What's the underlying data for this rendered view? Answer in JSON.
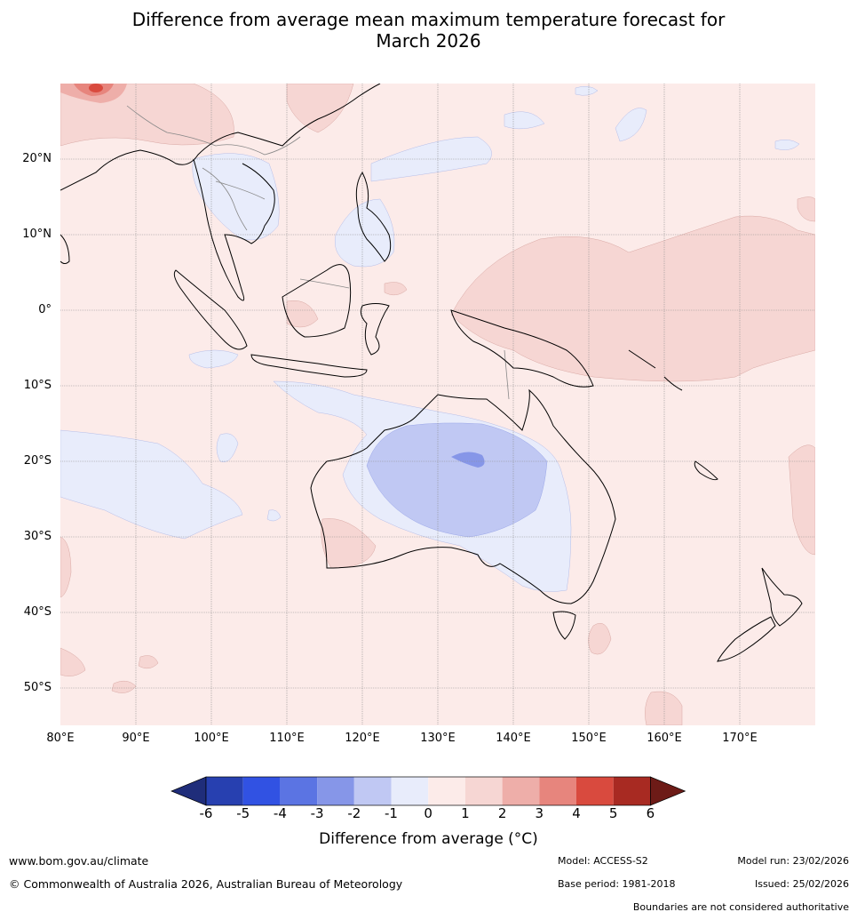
{
  "title": {
    "line1": "Difference from average mean maximum temperature forecast for",
    "line2": "March 2026"
  },
  "map": {
    "type": "anomaly-map",
    "lon_range": [
      80,
      180
    ],
    "lat_range": [
      -55,
      30
    ],
    "lat_labels": [
      {
        "lat": 20,
        "label": "20°N"
      },
      {
        "lat": 10,
        "label": "10°N"
      },
      {
        "lat": 0,
        "label": "0°"
      },
      {
        "lat": -10,
        "label": "10°S"
      },
      {
        "lat": -20,
        "label": "20°S"
      },
      {
        "lat": -30,
        "label": "30°S"
      },
      {
        "lat": -40,
        "label": "40°S"
      },
      {
        "lat": -50,
        "label": "50°S"
      }
    ],
    "lon_labels": [
      {
        "lon": 80,
        "label": "80°E"
      },
      {
        "lon": 90,
        "label": "90°E"
      },
      {
        "lon": 100,
        "label": "100°E"
      },
      {
        "lon": 110,
        "label": "110°E"
      },
      {
        "lon": 120,
        "label": "120°E"
      },
      {
        "lon": 130,
        "label": "130°E"
      },
      {
        "lon": 140,
        "label": "140°E"
      },
      {
        "lon": 150,
        "label": "150°E"
      },
      {
        "lon": 160,
        "label": "160°E"
      },
      {
        "lon": 170,
        "label": "170°E"
      }
    ],
    "colors": {
      "background_0_to_1": "#fcebe9",
      "ocean_pos": "#f6d6d3",
      "neg1": "#e8ecfb",
      "neg2": "#c0c8f3",
      "neg3": "#8696e8",
      "coast": "#000000",
      "border": "#888888",
      "grid": "#8c8c8c"
    }
  },
  "colorbar": {
    "ticks": [
      "-6",
      "-5",
      "-4",
      "-3",
      "-2",
      "-1",
      "0",
      "1",
      "2",
      "3",
      "4",
      "5",
      "6"
    ],
    "colors": [
      "#1f2d7a",
      "#2740b0",
      "#3152e3",
      "#5b74e3",
      "#8696e8",
      "#c0c8f3",
      "#e8ecfb",
      "#fcebe9",
      "#f6d6d3",
      "#eeaea9",
      "#e7857d",
      "#d94a3e",
      "#a82a22",
      "#6d1b17"
    ],
    "label": "Difference from average ($^\\circ$C)",
    "label_display": "Difference from average (°C)"
  },
  "footer": {
    "url": "www.bom.gov.au/climate",
    "copyright": "© Commonwealth of Australia 2026, Australian Bureau of Meteorology",
    "model": "Model: ACCESS-S2",
    "base_period": "Base period: 1981-2018",
    "model_run": "Model run: 23/02/2026",
    "issued": "Issued: 25/02/2026",
    "disclaimer": "Boundaries are not considered authoritative"
  }
}
